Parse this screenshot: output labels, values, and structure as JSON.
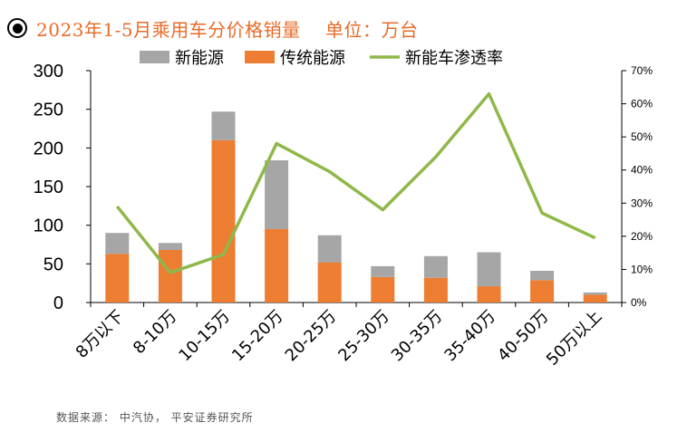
{
  "title": "2023年1-5月乘用车分价格销量    单位：万台",
  "source": "数据来源： 中汽协， 平安证券研究所",
  "colors": {
    "title": "#e96a28",
    "new_energy": "#a6a6a6",
    "traditional": "#ed7d31",
    "penetration": "#8fb84a"
  },
  "chart_data": {
    "type": "bar",
    "stacked": true,
    "categories": [
      "8万以下",
      "8-10万",
      "10-15万",
      "15-20万",
      "20-25万",
      "25-30万",
      "30-35万",
      "35-40万",
      "40-50万",
      "50万以上"
    ],
    "series": [
      {
        "name": "新能源",
        "type": "bar",
        "axis": "left",
        "values": [
          27,
          9,
          37,
          89,
          35,
          14,
          28,
          44,
          12,
          3
        ]
      },
      {
        "name": "传统能源",
        "type": "bar",
        "axis": "left",
        "values": [
          63,
          68,
          210,
          95,
          52,
          33,
          32,
          21,
          29,
          10
        ]
      },
      {
        "name": "新能车渗透率",
        "type": "line",
        "axis": "right",
        "values": [
          0.29,
          0.09,
          0.145,
          0.48,
          0.395,
          0.28,
          0.44,
          0.63,
          0.27,
          0.195
        ]
      }
    ],
    "ylim": [
      0,
      300
    ],
    "yticks": [
      "0",
      "50",
      "100",
      "150",
      "200",
      "250",
      "300"
    ],
    "y2lim": [
      0,
      0.7
    ],
    "y2ticks": [
      "0%",
      "10%",
      "20%",
      "30%",
      "40%",
      "50%",
      "60%",
      "70%"
    ],
    "legend_position": "top",
    "grid": false
  }
}
